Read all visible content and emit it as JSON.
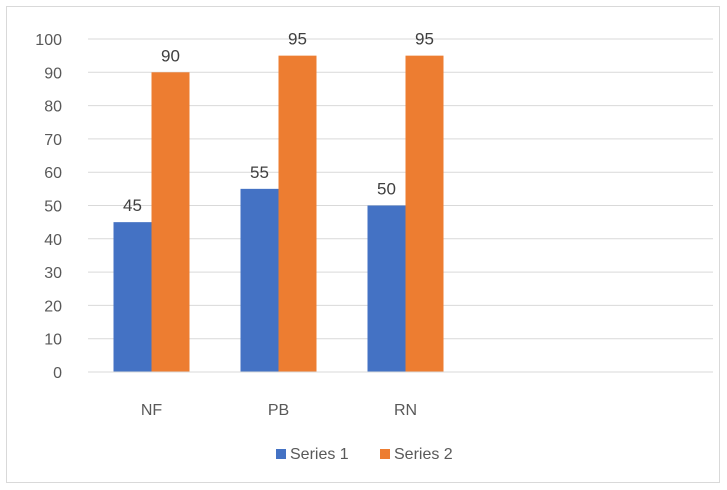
{
  "chart_data": {
    "type": "bar",
    "categories": [
      "NF",
      "PB",
      "RN"
    ],
    "series": [
      {
        "name": "Series 1",
        "values": [
          45,
          55,
          50
        ],
        "color": "#4472c4"
      },
      {
        "name": "Series 2",
        "values": [
          90,
          95,
          95
        ],
        "color": "#ed7d31"
      }
    ],
    "ylim": [
      0,
      100
    ],
    "yticks": [
      0,
      10,
      20,
      30,
      40,
      50,
      60,
      70,
      80,
      90,
      100
    ],
    "grid": true,
    "gridline_color": "#d9d9d9",
    "legend_position": "bottom",
    "title": "",
    "xlabel": "",
    "ylabel": ""
  }
}
